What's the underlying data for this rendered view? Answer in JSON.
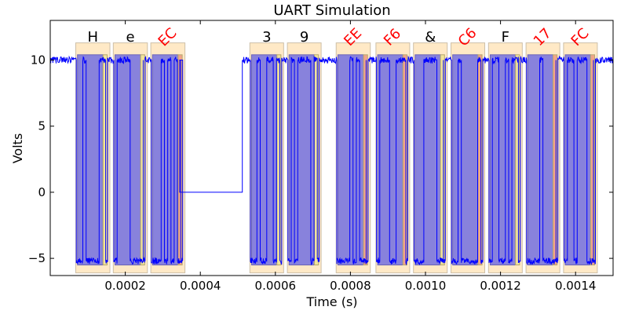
{
  "chart_data": {
    "type": "line",
    "title": "UART Simulation",
    "xlabel": "Time (s)",
    "ylabel": "Volts",
    "xlim": [
      0.0,
      0.0015
    ],
    "ylim": [
      -6.3,
      13.0
    ],
    "x_ticks": [
      {
        "value": 0.0002,
        "label": "0.0002"
      },
      {
        "value": 0.0004,
        "label": "0.0004"
      },
      {
        "value": 0.0006,
        "label": "0.0006"
      },
      {
        "value": 0.0008,
        "label": "0.0008"
      },
      {
        "value": 0.001,
        "label": "0.0010"
      },
      {
        "value": 0.0012,
        "label": "0.0012"
      },
      {
        "value": 0.0014,
        "label": "0.0014"
      }
    ],
    "y_ticks": [
      {
        "value": -5,
        "label": "−5"
      },
      {
        "value": 0,
        "label": "0"
      },
      {
        "value": 5,
        "label": "5"
      },
      {
        "value": 10,
        "label": "10"
      }
    ],
    "grid": false,
    "signal": {
      "name": "",
      "color": "#0000ff",
      "high": 10,
      "low": -5.2,
      "baud_bit_s": 8.7e-06,
      "idle_gap": {
        "x": [
          0.000345,
          0.000512
        ],
        "value": 0
      }
    },
    "frames": [
      {
        "label": "H",
        "x0": 6.8e-05,
        "x1": 0.000159,
        "valid": true
      },
      {
        "label": "e",
        "x0": 0.000168,
        "x1": 0.000259,
        "valid": true
      },
      {
        "label": "EC",
        "x0": 0.000268,
        "x1": 0.000359,
        "valid": false
      },
      {
        "label": "3",
        "x0": 0.000532,
        "x1": 0.000622,
        "valid": true
      },
      {
        "label": "9",
        "x0": 0.000632,
        "x1": 0.000722,
        "valid": true
      },
      {
        "label": "EE",
        "x0": 0.000762,
        "x1": 0.000853,
        "valid": false
      },
      {
        "label": "F6",
        "x0": 0.000868,
        "x1": 0.000958,
        "valid": false
      },
      {
        "label": "&",
        "x0": 0.000968,
        "x1": 0.001058,
        "valid": true
      },
      {
        "label": "C6",
        "x0": 0.001068,
        "x1": 0.001158,
        "valid": false
      },
      {
        "label": "F",
        "x0": 0.001168,
        "x1": 0.001258,
        "valid": true
      },
      {
        "label": "17",
        "x0": 0.001268,
        "x1": 0.001358,
        "valid": false
      },
      {
        "label": "FC",
        "x0": 0.001368,
        "x1": 0.001458,
        "valid": false
      }
    ],
    "colors": {
      "frame_box": "#ffe9c6",
      "frame_box_edge": "#cdbfa8",
      "data_bits": "#8882dc",
      "stop_bit_ok": "#f2e49a",
      "stop_bit_bad": "#f2a48a",
      "invalid_label": "#ff0000",
      "valid_label": "#000000"
    }
  }
}
